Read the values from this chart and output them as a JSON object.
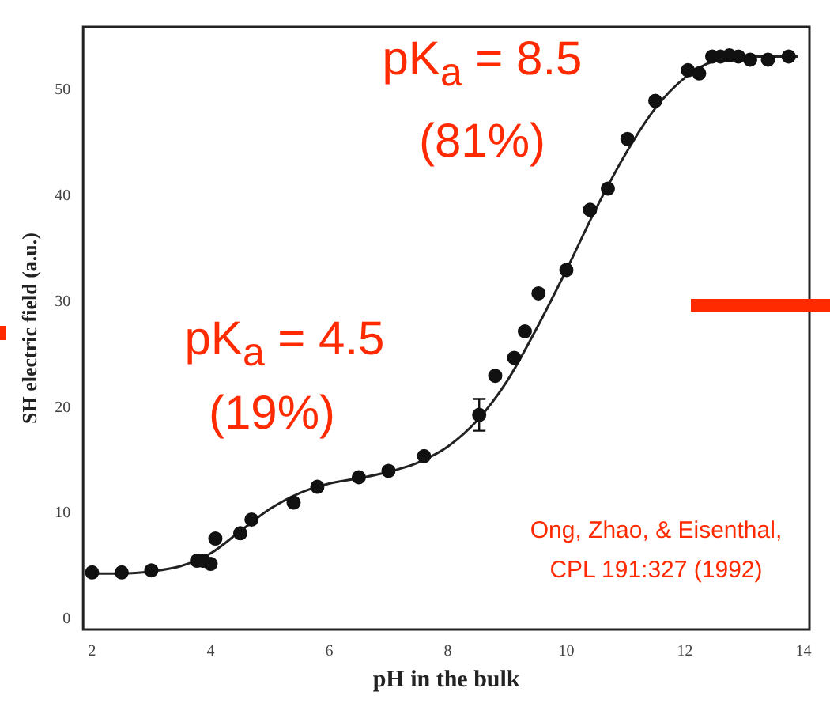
{
  "chart_data": {
    "type": "scatter",
    "xlabel": "pH in the bulk",
    "ylabel": "SH electric field (a.u.)",
    "xlim": [
      1.85,
      14.1
    ],
    "xticks": [
      2,
      4,
      6,
      8,
      10,
      12,
      14
    ],
    "ylim": [
      -1,
      56
    ],
    "yticks": [
      0,
      10,
      20,
      30,
      40,
      50
    ],
    "marker": "circle",
    "series": [
      {
        "type": "scatter",
        "color": "#111111",
        "x": [
          2.0,
          2.5,
          3.0,
          3.77,
          3.88,
          4.0,
          4.08,
          4.5,
          4.69,
          5.4,
          5.8,
          6.5,
          7.0,
          7.6,
          8.53,
          8.8,
          9.12,
          9.3,
          9.53,
          10.0,
          10.4,
          10.7,
          11.03,
          11.5,
          12.05,
          12.24,
          12.46,
          12.6,
          12.75,
          12.9,
          13.1,
          13.4,
          13.75
        ],
        "values": [
          4.4,
          4.4,
          4.6,
          5.5,
          5.5,
          5.2,
          7.6,
          8.1,
          9.4,
          11.0,
          12.5,
          13.4,
          14.0,
          15.4,
          19.3,
          23.0,
          24.7,
          27.2,
          30.8,
          33.0,
          38.7,
          40.7,
          45.4,
          49.0,
          51.9,
          51.6,
          53.2,
          53.2,
          53.3,
          53.2,
          52.9,
          52.9,
          53.2
        ],
        "errors": [
          null,
          null,
          null,
          null,
          null,
          null,
          null,
          null,
          null,
          null,
          null,
          null,
          null,
          null,
          1.5,
          null,
          null,
          null,
          null,
          null,
          null,
          null,
          null,
          null,
          null,
          null,
          null,
          null,
          null,
          null,
          null,
          null,
          null
        ]
      },
      {
        "type": "line",
        "color": "#222222",
        "marker": "none",
        "x": [
          1.9,
          2.5,
          3.0,
          3.5,
          4.0,
          4.5,
          5.0,
          5.5,
          6.0,
          6.5,
          7.0,
          7.5,
          8.0,
          8.5,
          9.0,
          9.5,
          10.0,
          10.5,
          11.0,
          11.5,
          12.0,
          12.5,
          13.0,
          13.5,
          13.9
        ],
        "values": [
          4.3,
          4.3,
          4.5,
          5.0,
          6.2,
          8.3,
          10.4,
          11.9,
          12.8,
          13.3,
          13.9,
          14.8,
          16.3,
          18.8,
          22.5,
          27.5,
          33.0,
          38.8,
          44.0,
          48.3,
          51.2,
          52.8,
          53.2,
          53.2,
          53.2
        ]
      }
    ],
    "annotations": [
      "pK$_{a}$ = 8.5",
      "(81%)",
      "pK$_{a}$ = 4.5",
      "(19%)",
      "Ong, Zhao, & Eisenthal,",
      "CPL 191:327 (1992)"
    ]
  }
}
